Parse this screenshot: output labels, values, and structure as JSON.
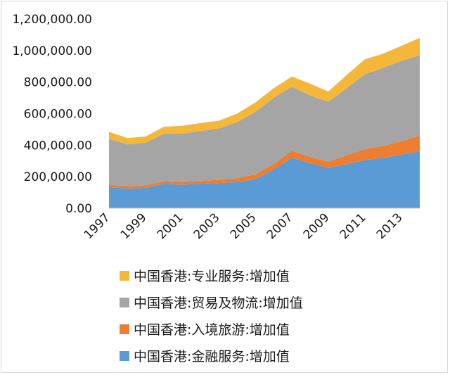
{
  "chart_data": {
    "type": "area",
    "stacked": true,
    "title": "",
    "xlabel": "",
    "ylabel": "",
    "x": [
      1997,
      1998,
      1999,
      2000,
      2001,
      2002,
      2003,
      2004,
      2005,
      2006,
      2007,
      2008,
      2009,
      2010,
      2011,
      2012,
      2013,
      2014
    ],
    "x_tick_labels": [
      "1997",
      "1999",
      "2001",
      "2003",
      "2005",
      "2007",
      "2009",
      "2011",
      "2013"
    ],
    "y_tick_labels": [
      "0.00",
      "200,000.00",
      "400,000.00",
      "600,000.00",
      "800,000.00",
      "1,000,000.00",
      "1,200,000.00"
    ],
    "ylim": [
      0,
      1200000
    ],
    "grid": false,
    "legend_position": "bottom",
    "series": [
      {
        "name": "中国香港:金融服务:增加值",
        "color": "#5b9bd5",
        "values": [
          135000,
          125000,
          130000,
          155000,
          150000,
          155000,
          160000,
          165000,
          185000,
          245000,
          320000,
          285000,
          255000,
          280000,
          305000,
          320000,
          340000,
          360000
        ]
      },
      {
        "name": "中国香港:入境旅游:增加值",
        "color": "#ed7d31",
        "values": [
          15000,
          15000,
          15000,
          17000,
          18000,
          20000,
          20000,
          25000,
          30000,
          35000,
          45000,
          40000,
          40000,
          55000,
          70000,
          75000,
          85000,
          100000
        ]
      },
      {
        "name": "中国香港:贸易及物流:增加值",
        "color": "#a5a5a5",
        "values": [
          290000,
          265000,
          270000,
          300000,
          305000,
          315000,
          325000,
          355000,
          395000,
          420000,
          405000,
          390000,
          380000,
          425000,
          475000,
          495000,
          510000,
          510000
        ]
      },
      {
        "name": "中国香港:专业服务:增加值",
        "color": "#f4b73a",
        "values": [
          45000,
          40000,
          40000,
          45000,
          50000,
          50000,
          50000,
          55000,
          60000,
          60000,
          65000,
          75000,
          65000,
          85000,
          95000,
          90000,
          95000,
          110000
        ]
      }
    ],
    "legend_order": [
      3,
      2,
      1,
      0
    ]
  }
}
